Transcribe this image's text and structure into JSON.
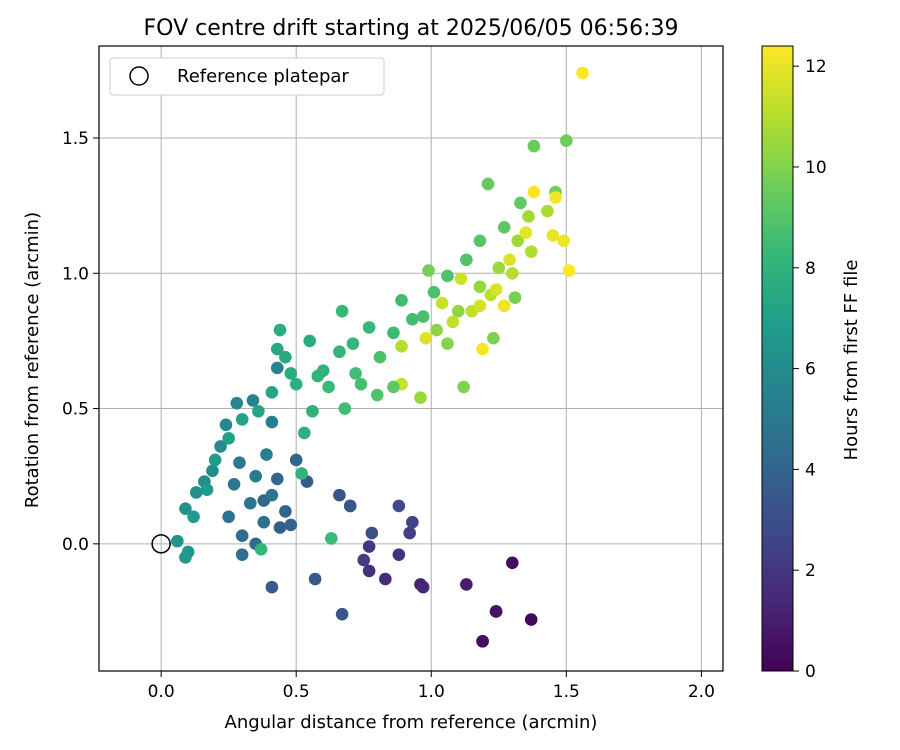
{
  "chart_data": {
    "type": "scatter",
    "title": "FOV centre drift starting at 2025/06/05 06:56:39",
    "xlabel": "Angular distance from reference (arcmin)",
    "ylabel": "Rotation from reference (arcmin)",
    "xlim": [
      -0.23,
      2.08
    ],
    "ylim": [
      -0.47,
      1.84
    ],
    "xticks": [
      0.0,
      0.5,
      1.0,
      1.5,
      2.0
    ],
    "xtick_labels": [
      "0.0",
      "0.5",
      "1.0",
      "1.5",
      "2.0"
    ],
    "yticks": [
      0.0,
      0.5,
      1.0,
      1.5
    ],
    "ytick_labels": [
      "0.0",
      "0.5",
      "1.0",
      "1.5"
    ],
    "grid": true,
    "legend": {
      "placement": "top-left",
      "entries": [
        "Reference platepar"
      ]
    },
    "reference_point": {
      "x": 0.0,
      "y": 0.0
    },
    "colorbar": {
      "label": "Hours from first FF file",
      "colormap": "viridis",
      "range": [
        0,
        12.4
      ],
      "ticks": [
        0,
        2,
        4,
        6,
        8,
        10,
        12
      ],
      "tick_labels": [
        "0",
        "2",
        "4",
        "6",
        "8",
        "10",
        "12"
      ]
    },
    "points": [
      [
        1.19,
        -0.36,
        0.0
      ],
      [
        1.24,
        -0.25,
        0.2
      ],
      [
        1.37,
        -0.28,
        0.3
      ],
      [
        1.3,
        -0.07,
        0.4
      ],
      [
        1.19,
        -0.36,
        0.5
      ],
      [
        1.24,
        -0.25,
        0.7
      ],
      [
        1.13,
        -0.15,
        1.0
      ],
      [
        0.96,
        -0.15,
        1.2
      ],
      [
        0.97,
        -0.16,
        1.3
      ],
      [
        0.83,
        -0.13,
        1.5
      ],
      [
        0.77,
        -0.1,
        1.7
      ],
      [
        0.88,
        -0.04,
        1.8
      ],
      [
        0.77,
        -0.01,
        2.0
      ],
      [
        0.75,
        -0.06,
        2.2
      ],
      [
        0.92,
        0.04,
        2.4
      ],
      [
        0.93,
        0.08,
        2.6
      ],
      [
        0.88,
        0.14,
        2.8
      ],
      [
        0.78,
        0.04,
        3.0
      ],
      [
        0.7,
        0.14,
        3.1
      ],
      [
        0.66,
        0.18,
        3.2
      ],
      [
        0.7,
        0.14,
        3.3
      ],
      [
        0.67,
        -0.26,
        3.3
      ],
      [
        0.57,
        -0.13,
        3.4
      ],
      [
        0.41,
        -0.16,
        3.5
      ],
      [
        0.54,
        0.23,
        3.6
      ],
      [
        0.44,
        0.06,
        3.7
      ],
      [
        0.46,
        0.12,
        3.8
      ],
      [
        0.48,
        0.07,
        3.9
      ],
      [
        0.5,
        0.31,
        4.0
      ],
      [
        0.43,
        0.24,
        4.1
      ],
      [
        0.38,
        0.16,
        4.2
      ],
      [
        0.35,
        0.0,
        4.3
      ],
      [
        0.3,
        0.03,
        4.4
      ],
      [
        0.3,
        -0.04,
        4.5
      ],
      [
        0.25,
        0.1,
        4.6
      ],
      [
        0.38,
        0.08,
        4.7
      ],
      [
        0.41,
        0.18,
        4.8
      ],
      [
        0.33,
        0.15,
        4.9
      ],
      [
        0.27,
        0.22,
        5.0
      ],
      [
        0.29,
        0.3,
        5.1
      ],
      [
        0.35,
        0.25,
        5.2
      ],
      [
        0.39,
        0.33,
        5.3
      ],
      [
        0.41,
        0.45,
        5.4
      ],
      [
        0.34,
        0.53,
        5.5
      ],
      [
        0.43,
        0.65,
        5.6
      ],
      [
        0.28,
        0.52,
        5.7
      ],
      [
        0.24,
        0.44,
        5.8
      ],
      [
        0.22,
        0.36,
        5.9
      ],
      [
        0.19,
        0.27,
        6.0
      ],
      [
        0.16,
        0.23,
        6.1
      ],
      [
        0.13,
        0.19,
        6.2
      ],
      [
        0.09,
        0.13,
        6.3
      ],
      [
        0.06,
        0.01,
        6.4
      ],
      [
        0.1,
        -0.03,
        6.5
      ],
      [
        0.09,
        -0.05,
        6.6
      ],
      [
        0.12,
        0.1,
        6.7
      ],
      [
        0.17,
        0.2,
        6.8
      ],
      [
        0.2,
        0.31,
        6.9
      ],
      [
        0.25,
        0.39,
        7.0
      ],
      [
        0.3,
        0.46,
        7.1
      ],
      [
        0.36,
        0.49,
        7.2
      ],
      [
        0.41,
        0.56,
        7.3
      ],
      [
        0.43,
        0.72,
        7.4
      ],
      [
        0.46,
        0.69,
        7.5
      ],
      [
        0.48,
        0.63,
        7.6
      ],
      [
        0.44,
        0.79,
        7.7
      ],
      [
        0.5,
        0.59,
        7.8
      ],
      [
        0.56,
        0.49,
        7.9
      ],
      [
        0.6,
        0.64,
        8.0
      ],
      [
        0.66,
        0.71,
        8.1
      ],
      [
        0.71,
        0.74,
        8.2
      ],
      [
        0.77,
        0.8,
        8.3
      ],
      [
        0.86,
        0.78,
        8.4
      ],
      [
        0.89,
        0.9,
        8.5
      ],
      [
        0.93,
        0.83,
        8.6
      ],
      [
        0.97,
        0.84,
        8.7
      ],
      [
        1.01,
        0.93,
        8.8
      ],
      [
        1.06,
        0.99,
        8.9
      ],
      [
        1.13,
        1.05,
        9.0
      ],
      [
        1.18,
        1.12,
        9.1
      ],
      [
        1.27,
        1.17,
        9.2
      ],
      [
        1.33,
        1.26,
        9.3
      ],
      [
        1.21,
        1.33,
        9.4
      ],
      [
        1.38,
        1.47,
        9.5
      ],
      [
        1.5,
        1.49,
        9.6
      ],
      [
        1.46,
        1.3,
        9.7
      ],
      [
        1.31,
        0.91,
        9.8
      ],
      [
        1.23,
        0.76,
        9.9
      ],
      [
        1.12,
        0.58,
        10.0
      ],
      [
        1.06,
        0.74,
        10.1
      ],
      [
        1.02,
        0.79,
        10.2
      ],
      [
        1.1,
        0.86,
        10.3
      ],
      [
        1.18,
        0.95,
        10.4
      ],
      [
        1.25,
        1.02,
        10.5
      ],
      [
        1.32,
        1.12,
        10.6
      ],
      [
        1.36,
        1.21,
        10.7
      ],
      [
        1.43,
        1.23,
        10.8
      ],
      [
        1.37,
        1.08,
        10.9
      ],
      [
        1.3,
        1.0,
        11.0
      ],
      [
        1.22,
        0.92,
        11.1
      ],
      [
        1.15,
        0.86,
        11.2
      ],
      [
        1.08,
        0.82,
        11.3
      ],
      [
        1.04,
        0.89,
        11.4
      ],
      [
        1.11,
        0.98,
        11.5
      ],
      [
        1.18,
        0.88,
        11.6
      ],
      [
        1.24,
        0.94,
        11.7
      ],
      [
        1.29,
        1.05,
        11.8
      ],
      [
        1.35,
        1.15,
        11.9
      ],
      [
        1.45,
        1.14,
        12.0
      ],
      [
        1.49,
        1.12,
        12.1
      ],
      [
        1.46,
        1.28,
        12.2
      ],
      [
        1.38,
        1.3,
        12.3
      ],
      [
        1.56,
        1.74,
        12.4
      ],
      [
        1.51,
        1.01,
        12.4
      ],
      [
        1.19,
        0.72,
        12.2
      ],
      [
        1.27,
        0.88,
        12.1
      ],
      [
        0.98,
        0.76,
        11.8
      ],
      [
        0.89,
        0.59,
        11.4
      ],
      [
        0.89,
        0.73,
        11.0
      ],
      [
        0.96,
        0.54,
        10.4
      ],
      [
        0.99,
        1.01,
        9.8
      ],
      [
        0.86,
        0.58,
        9.2
      ],
      [
        0.8,
        0.55,
        8.9
      ],
      [
        0.74,
        0.59,
        8.7
      ],
      [
        0.68,
        0.5,
        8.5
      ],
      [
        0.62,
        0.58,
        8.3
      ],
      [
        0.58,
        0.62,
        8.0
      ],
      [
        0.53,
        0.41,
        7.8
      ],
      [
        0.52,
        0.26,
        8.0
      ],
      [
        0.63,
        0.02,
        8.4
      ],
      [
        0.37,
        -0.02,
        8.2
      ],
      [
        0.55,
        0.75,
        7.6
      ],
      [
        0.67,
        0.86,
        8.3
      ],
      [
        0.72,
        0.63,
        8.6
      ],
      [
        0.81,
        0.69,
        8.8
      ]
    ],
    "cluster_hint": "dense main group near (0.15–0.55, 0.0–0.75) with hours 5–8",
    "colors": {
      "viridis": [
        "#440154",
        "#482878",
        "#3e4989",
        "#31688e",
        "#26828e",
        "#1f9e89",
        "#35b779",
        "#6ece58",
        "#b5de2b",
        "#fde725"
      ],
      "grid": "#b0b0b0"
    }
  }
}
